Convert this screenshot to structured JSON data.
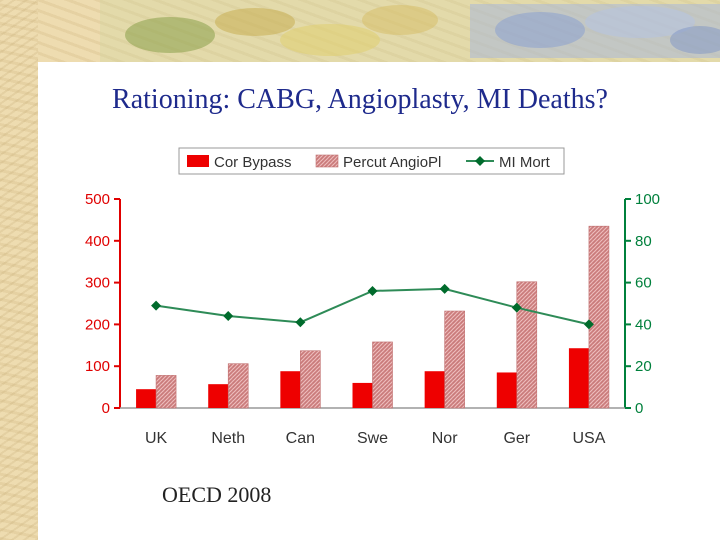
{
  "slide": {
    "title": "Rationing: CABG, Angioplasty, MI Deaths?",
    "footer": "OECD 2008"
  },
  "colors": {
    "title": "#1e2a8c",
    "left_axis": "#e00000",
    "right_axis": "#00803c",
    "cor_bypass": "#ee0000",
    "angioplasty": "#d88a8a",
    "mi_mort": "#2e8b57"
  },
  "chart_data": {
    "type": "bar",
    "categories": [
      "UK",
      "Neth",
      "Can",
      "Swe",
      "Nor",
      "Ger",
      "USA"
    ],
    "series": [
      {
        "name": "Cor Bypass",
        "axis": "left",
        "kind": "bar",
        "values": [
          45,
          57,
          88,
          60,
          88,
          85,
          143
        ]
      },
      {
        "name": "Percut AngioPl",
        "axis": "left",
        "kind": "bar",
        "values": [
          78,
          106,
          137,
          158,
          232,
          302,
          435
        ]
      },
      {
        "name": "MI Mort",
        "axis": "right",
        "kind": "line",
        "values": [
          49,
          44,
          41,
          56,
          57,
          48,
          40
        ]
      }
    ],
    "y_left": {
      "range": [
        0,
        500
      ],
      "ticks": [
        "0",
        "100",
        "200",
        "300",
        "400",
        "500"
      ]
    },
    "y_right": {
      "range": [
        0,
        100
      ],
      "ticks": [
        "0",
        "20",
        "40",
        "60",
        "80",
        "100"
      ]
    },
    "legend_position": "top",
    "grid": false
  }
}
